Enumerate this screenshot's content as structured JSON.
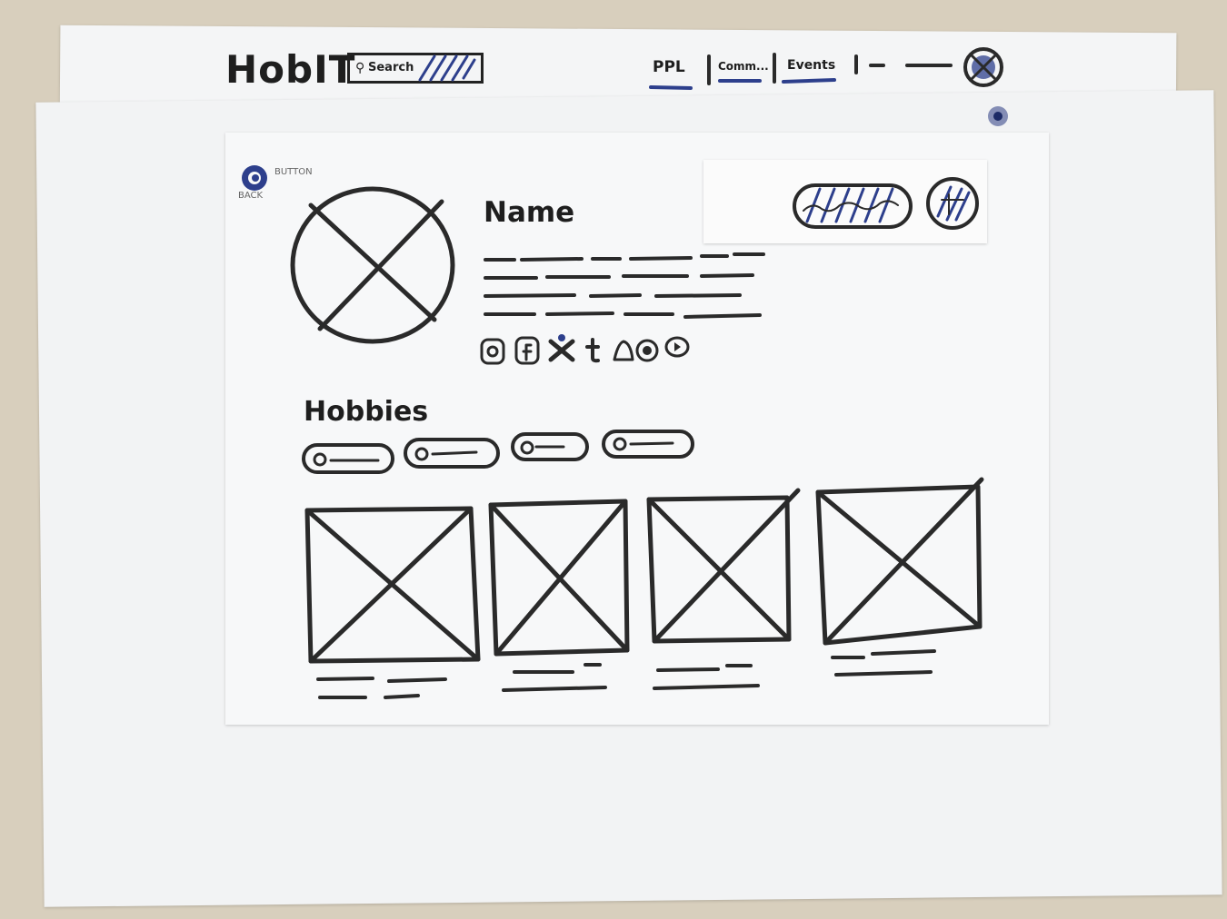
{
  "header": {
    "logo": "HobIT",
    "search_label": "Search",
    "nav": [
      {
        "label": "PPL"
      },
      {
        "label": "Comm..."
      },
      {
        "label": "Events"
      }
    ]
  },
  "profile_page": {
    "back_button_label": "BACK",
    "back_button_note": "BUTTON",
    "name_heading": "Name",
    "hobbies_heading": "Hobbies"
  },
  "colors": {
    "ink": "#2a2a2a",
    "accent_blue": "#2d3f8c",
    "paper": "#f4f5f6",
    "table": "#d8cfbd"
  },
  "icons": {
    "social": [
      "instagram-icon",
      "facebook-icon",
      "x-icon",
      "tumblr-icon",
      "snapchat-icon",
      "reddit-icon",
      "youtube-icon"
    ],
    "header": [
      "search-icon",
      "profile-avatar-icon"
    ]
  }
}
